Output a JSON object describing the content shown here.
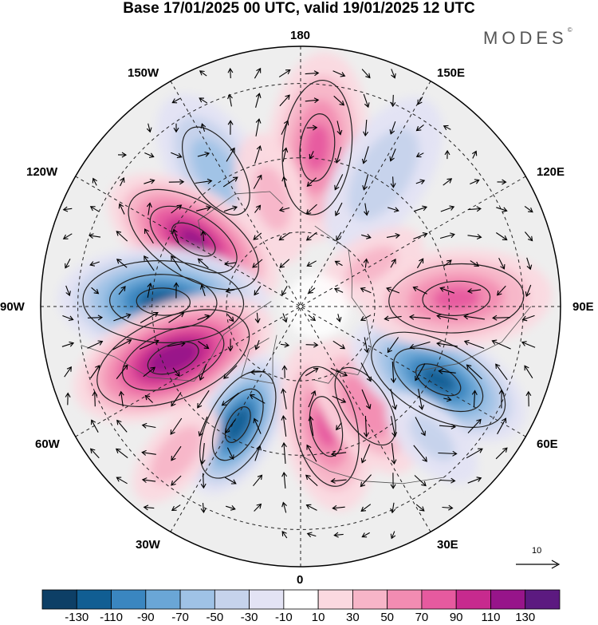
{
  "title": "Base 17/01/2025 00 UTC, valid 19/01/2025 12 UTC",
  "logo": "MODES",
  "logo_mark": "©",
  "longitude_labels": {
    "top": "180",
    "bottom": "0",
    "left": "90W",
    "right": "90E",
    "upper_left": "150W",
    "upper_right": "150E",
    "left_upper": "120W",
    "right_upper": "120E",
    "left_lower": "60W",
    "right_lower": "60E",
    "lower_left": "30W",
    "lower_right": "30E"
  },
  "reference_vector": {
    "label": "10"
  },
  "colorbar": {
    "colors": [
      "#0d3f66",
      "#115e93",
      "#3a86c0",
      "#6aa6d6",
      "#9fc2e6",
      "#c6d3ec",
      "#e3e3f4",
      "#ffffff",
      "#fbd9e0",
      "#f7b5c8",
      "#f28cb2",
      "#e65a9f",
      "#c72a8e",
      "#97158a",
      "#5c1a80"
    ],
    "tick_labels": [
      "-130",
      "-110",
      "-90",
      "-70",
      "-50",
      "-30",
      "-10",
      "10",
      "30",
      "50",
      "70",
      "90",
      "110",
      "130"
    ]
  },
  "anomaly_centers": [
    {
      "lon": 174,
      "colat": 43,
      "value": 70,
      "size": 1.0
    },
    {
      "lon": -148,
      "colat": 43,
      "value": -60,
      "size": 0.9
    },
    {
      "lon": -122,
      "colat": 34,
      "value": 110,
      "size": 1.0
    },
    {
      "lon": -92,
      "colat": 37,
      "value": -120,
      "size": 1.1
    },
    {
      "lon": -68,
      "colat": 37,
      "value": 125,
      "size": 1.1
    },
    {
      "lon": -28,
      "colat": 36,
      "value": -125,
      "size": 0.8
    },
    {
      "lon": 12,
      "colat": 33,
      "value": 70,
      "size": 0.9
    },
    {
      "lon": 33,
      "colat": 32,
      "value": 65,
      "size": 0.8
    },
    {
      "lon": 62,
      "colat": 42,
      "value": -115,
      "size": 1.0
    },
    {
      "lon": 93,
      "colat": 42,
      "value": 70,
      "size": 1.0
    },
    {
      "lon": 148,
      "colat": 42,
      "value": -40,
      "size": 0.9
    },
    {
      "lon": -165,
      "colat": 30,
      "value": 30,
      "size": 0.7
    },
    {
      "lon": 120,
      "colat": 22,
      "value": 30,
      "size": 0.6
    },
    {
      "lon": -40,
      "colat": 52,
      "value": 40,
      "size": 0.6
    },
    {
      "lon": 45,
      "colat": 50,
      "value": -30,
      "size": 0.6
    }
  ]
}
